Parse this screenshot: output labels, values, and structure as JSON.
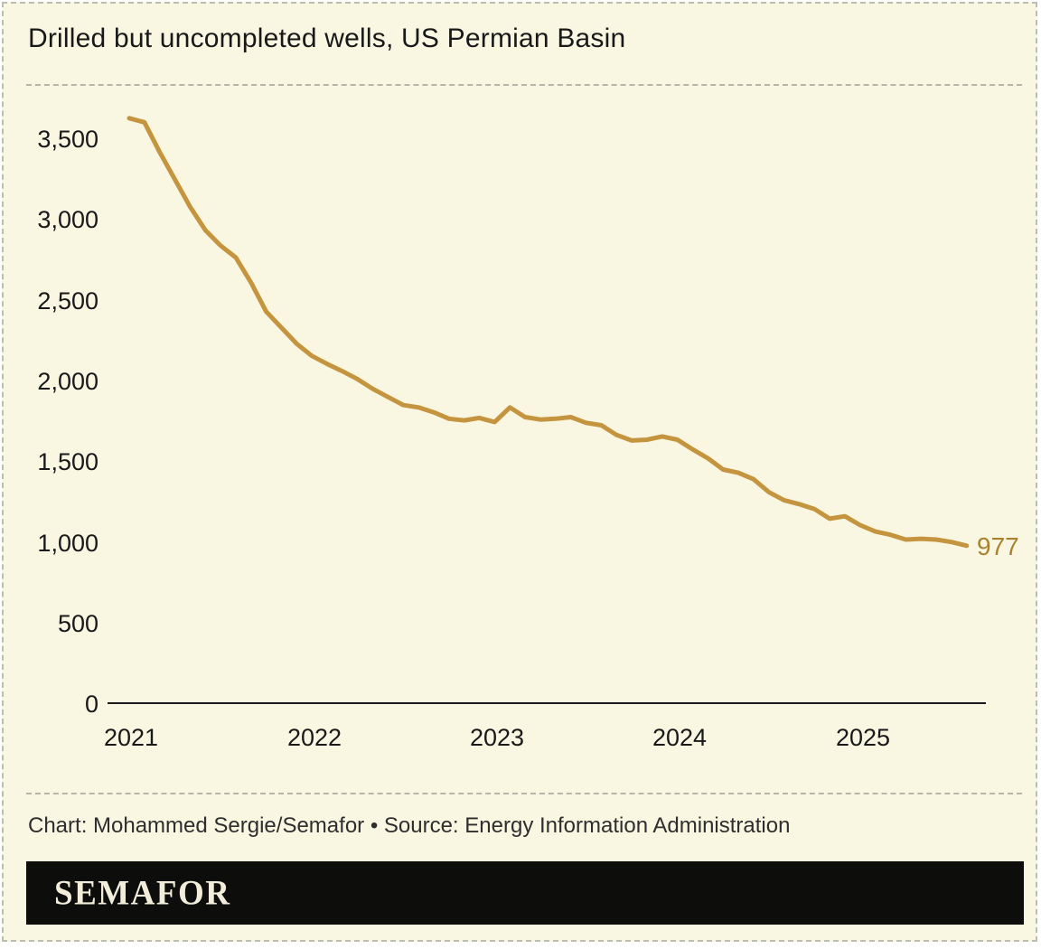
{
  "title": "Drilled but uncompleted wells, US Permian Basin",
  "credit": "Chart: Mohammed Sergie/Semafor • Source: Energy Information Administration",
  "brand": "SEMAFOR",
  "colors": {
    "line": "#c5943f",
    "end_label": "#a8822e",
    "background": "#f9f6e1",
    "logo_bar": "#0d0d0b",
    "text": "#191919"
  },
  "chart_data": {
    "type": "line",
    "title": "Drilled but uncompleted wells, US Permian Basin",
    "series_name": "Drilled but uncompleted wells (DUCs), US Permian Basin",
    "grid": false,
    "legend": "none",
    "ylim": [
      0,
      3700
    ],
    "y_tick_labels": [
      "0",
      "500",
      "1,000",
      "1,500",
      "2,000",
      "2,500",
      "3,000",
      "3,500"
    ],
    "y_tick_values": [
      0,
      500,
      1000,
      1500,
      2000,
      2500,
      3000,
      3500
    ],
    "x_tick_labels": [
      "2021",
      "2022",
      "2023",
      "2024",
      "2025"
    ],
    "end_label": "977",
    "months": [
      "Jan 2021",
      "Feb 2021",
      "Mar 2021",
      "Apr 2021",
      "May 2021",
      "Jun 2021",
      "Jul 2021",
      "Aug 2021",
      "Sep 2021",
      "Oct 2021",
      "Nov 2021",
      "Dec 2021",
      "Jan 2022",
      "Feb 2022",
      "Mar 2022",
      "Apr 2022",
      "May 2022",
      "Jun 2022",
      "Jul 2022",
      "Aug 2022",
      "Sep 2022",
      "Oct 2022",
      "Nov 2022",
      "Dec 2022",
      "Jan 2023",
      "Feb 2023",
      "Mar 2023",
      "Apr 2023",
      "May 2023",
      "Jun 2023",
      "Jul 2023",
      "Aug 2023",
      "Sep 2023",
      "Oct 2023",
      "Nov 2023",
      "Dec 2023",
      "Jan 2024",
      "Feb 2024",
      "Mar 2024",
      "Apr 2024",
      "May 2024",
      "Jun 2024",
      "Jul 2024",
      "Aug 2024",
      "Sep 2024",
      "Oct 2024",
      "Nov 2024",
      "Dec 2024",
      "Jan 2025",
      "Feb 2025",
      "Mar 2025",
      "Apr 2025",
      "May 2025",
      "Jun 2025",
      "Jul 2025",
      "Aug 2025"
    ],
    "values": [
      3630,
      3605,
      3420,
      3250,
      3080,
      2935,
      2840,
      2765,
      2610,
      2430,
      2330,
      2230,
      2155,
      2105,
      2060,
      2010,
      1950,
      1900,
      1850,
      1835,
      1805,
      1765,
      1755,
      1770,
      1745,
      1835,
      1775,
      1760,
      1765,
      1775,
      1740,
      1725,
      1665,
      1630,
      1635,
      1655,
      1635,
      1575,
      1520,
      1450,
      1430,
      1390,
      1310,
      1260,
      1235,
      1205,
      1145,
      1160,
      1105,
      1065,
      1045,
      1015,
      1020,
      1015,
      1000,
      977
    ]
  }
}
